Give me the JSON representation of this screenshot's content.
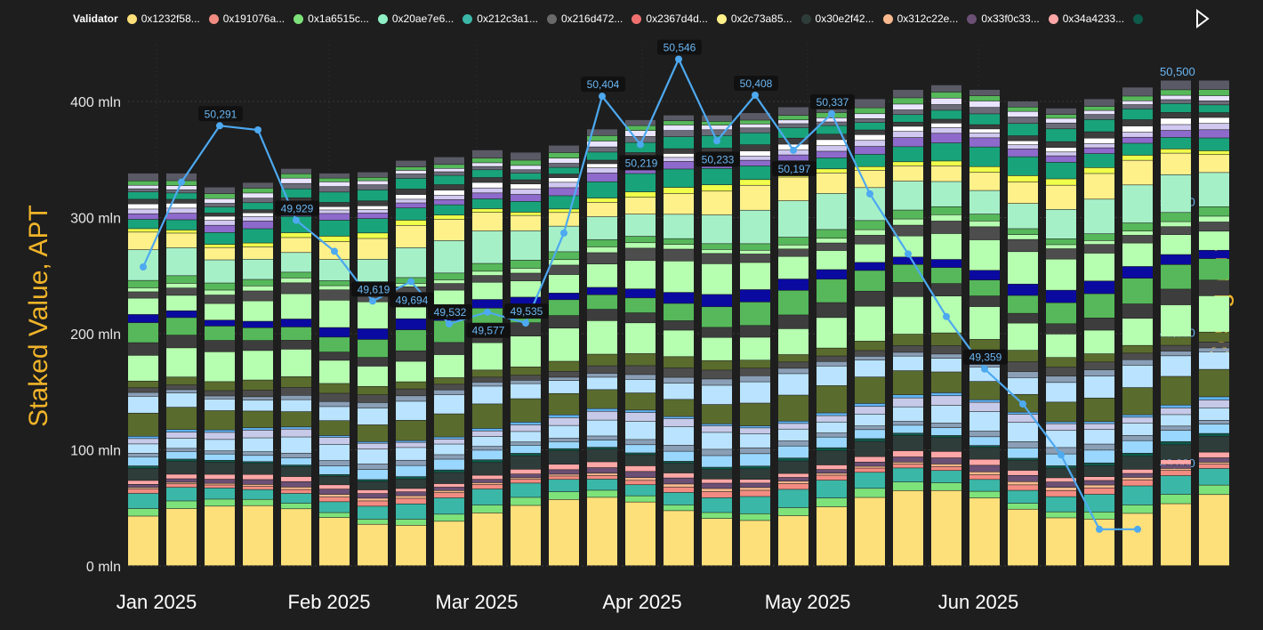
{
  "legend": {
    "title": "Validator",
    "items": [
      {
        "label": "0x1232f58...",
        "color": "#fde07a"
      },
      {
        "label": "0x191076a...",
        "color": "#f28b82"
      },
      {
        "label": "0x1a6515c...",
        "color": "#7ee27a"
      },
      {
        "label": "0x20ae7e6...",
        "color": "#8ef0c4"
      },
      {
        "label": "0x212c3a1...",
        "color": "#3bb7a7"
      },
      {
        "label": "0x216d472...",
        "color": "#6a6a6a"
      },
      {
        "label": "0x2367d4d...",
        "color": "#f07070"
      },
      {
        "label": "0x2c73a85...",
        "color": "#fff18a"
      },
      {
        "label": "0x30e2f42...",
        "color": "#2f3d3a"
      },
      {
        "label": "0x312c22e...",
        "color": "#f8b98e"
      },
      {
        "label": "0x33f0c33...",
        "color": "#6b4f74"
      },
      {
        "label": "0x34a4233...",
        "color": "#ffa7a7"
      },
      {
        "label": "",
        "color": "#0e5a4a"
      }
    ]
  },
  "axes": {
    "left_title": "Staked Value, APT",
    "right_title": "Delegators"
  },
  "chart_data": {
    "type": "bar",
    "x_months": [
      "Jan 2025",
      "Feb 2025",
      "Mar 2025",
      "Apr 2025",
      "May 2025",
      "Jun 2025"
    ],
    "left_axis": {
      "ticks": [
        0,
        100,
        200,
        300,
        400
      ],
      "tick_labels": [
        "0 mln",
        "100 mln",
        "200 mln",
        "300 mln",
        "400 mln"
      ],
      "unit": "mln",
      "ylim": [
        0,
        440
      ]
    },
    "right_axis": {
      "ticks": [
        49000,
        49500,
        50000,
        50500
      ],
      "tick_labels": [
        "49,000",
        "49,500",
        "50,000",
        "50,500"
      ],
      "ylim": [
        48650,
        50550
      ]
    },
    "stacked_totals_mln": [
      338,
      338,
      326,
      330,
      342,
      338,
      339,
      349,
      352,
      358,
      356,
      362,
      376,
      384,
      388,
      388,
      390,
      395,
      398,
      402,
      410,
      414,
      410,
      400,
      394,
      402,
      412,
      418,
      418
    ],
    "delegators_line": [
      49750,
      50075,
      50291,
      50275,
      49929,
      49810,
      49619,
      49694,
      49532,
      49577,
      49535,
      49880,
      50404,
      50219,
      50546,
      50233,
      50408,
      50197,
      50337,
      50030,
      49800,
      49560,
      49359,
      49225,
      49030,
      48745,
      48745
    ],
    "point_labels": [
      {
        "i": 2,
        "text": "50,291"
      },
      {
        "i": 4,
        "text": "49,929"
      },
      {
        "i": 6,
        "text": "49,619"
      },
      {
        "i": 7,
        "text": "49,694"
      },
      {
        "i": 8,
        "text": "49,532"
      },
      {
        "i": 9,
        "text": "49,577"
      },
      {
        "i": 10,
        "text": "49,535"
      },
      {
        "i": 12,
        "text": "50,404"
      },
      {
        "i": 13,
        "text": "50,219"
      },
      {
        "i": 14,
        "text": "50,546"
      },
      {
        "i": 15,
        "text": "50,233"
      },
      {
        "i": 16,
        "text": "50,408"
      },
      {
        "i": 17,
        "text": "50,197"
      },
      {
        "i": 18,
        "text": "50,337"
      },
      {
        "i": 22,
        "text": "49,359"
      }
    ],
    "series_colors": [
      "#fde07a",
      "#f28b82",
      "#7ee27a",
      "#8ef0c4",
      "#3bb7a7",
      "#6a6a6a",
      "#f07070",
      "#fff18a",
      "#2f3d3a",
      "#f8b98e",
      "#6b4f74",
      "#ffa7a7",
      "#0e5a4a",
      "#9ad7ff",
      "#b9e3ff",
      "#5fb4f5",
      "#0046a0",
      "#8a9fb6",
      "#b6ffb0",
      "#56b85a",
      "#3d3d3d",
      "#0a0aa0",
      "#19a37a",
      "#e9e4ff",
      "#8d6acb",
      "#ffffff",
      "#a6f0c8",
      "#f0ff4a"
    ],
    "line_color": "#4da9f0",
    "label_bg": "#111111"
  }
}
